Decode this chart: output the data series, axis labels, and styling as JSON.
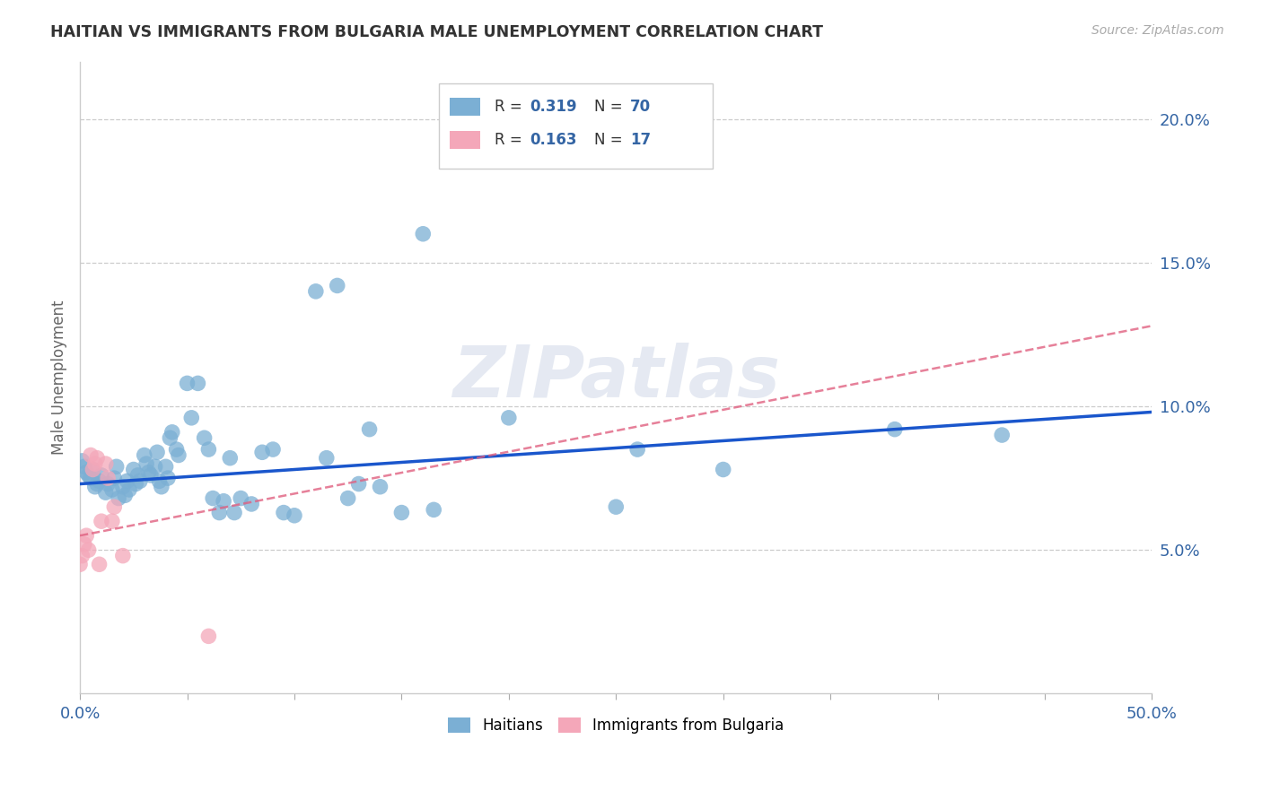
{
  "title": "HAITIAN VS IMMIGRANTS FROM BULGARIA MALE UNEMPLOYMENT CORRELATION CHART",
  "source": "Source: ZipAtlas.com",
  "ylabel": "Male Unemployment",
  "watermark": "ZIPatlas",
  "xlim": [
    0.0,
    0.5
  ],
  "ylim": [
    0.0,
    0.22
  ],
  "xticks": [
    0.0,
    0.05,
    0.1,
    0.15,
    0.2,
    0.25,
    0.3,
    0.35,
    0.4,
    0.45,
    0.5
  ],
  "yticks": [
    0.05,
    0.1,
    0.15,
    0.2
  ],
  "color_haiti": "#7bafd4",
  "color_bulgaria": "#f4a7b9",
  "trendline_haiti_color": "#1a56cc",
  "trendline_bulgaria_color": "#e06080",
  "haiti_points": [
    [
      0.001,
      0.081
    ],
    [
      0.002,
      0.079
    ],
    [
      0.003,
      0.077
    ],
    [
      0.004,
      0.076
    ],
    [
      0.005,
      0.075
    ],
    [
      0.006,
      0.078
    ],
    [
      0.007,
      0.072
    ],
    [
      0.008,
      0.073
    ],
    [
      0.009,
      0.074
    ],
    [
      0.01,
      0.076
    ],
    [
      0.012,
      0.07
    ],
    [
      0.013,
      0.073
    ],
    [
      0.015,
      0.071
    ],
    [
      0.016,
      0.075
    ],
    [
      0.017,
      0.079
    ],
    [
      0.018,
      0.068
    ],
    [
      0.02,
      0.072
    ],
    [
      0.021,
      0.069
    ],
    [
      0.022,
      0.074
    ],
    [
      0.023,
      0.071
    ],
    [
      0.025,
      0.078
    ],
    [
      0.026,
      0.073
    ],
    [
      0.027,
      0.076
    ],
    [
      0.028,
      0.074
    ],
    [
      0.03,
      0.083
    ],
    [
      0.031,
      0.08
    ],
    [
      0.032,
      0.077
    ],
    [
      0.033,
      0.076
    ],
    [
      0.035,
      0.079
    ],
    [
      0.036,
      0.084
    ],
    [
      0.037,
      0.074
    ],
    [
      0.038,
      0.072
    ],
    [
      0.04,
      0.079
    ],
    [
      0.041,
      0.075
    ],
    [
      0.042,
      0.089
    ],
    [
      0.043,
      0.091
    ],
    [
      0.045,
      0.085
    ],
    [
      0.046,
      0.083
    ],
    [
      0.05,
      0.108
    ],
    [
      0.052,
      0.096
    ],
    [
      0.055,
      0.108
    ],
    [
      0.058,
      0.089
    ],
    [
      0.06,
      0.085
    ],
    [
      0.062,
      0.068
    ],
    [
      0.065,
      0.063
    ],
    [
      0.067,
      0.067
    ],
    [
      0.07,
      0.082
    ],
    [
      0.072,
      0.063
    ],
    [
      0.075,
      0.068
    ],
    [
      0.08,
      0.066
    ],
    [
      0.085,
      0.084
    ],
    [
      0.09,
      0.085
    ],
    [
      0.095,
      0.063
    ],
    [
      0.1,
      0.062
    ],
    [
      0.11,
      0.14
    ],
    [
      0.115,
      0.082
    ],
    [
      0.12,
      0.142
    ],
    [
      0.125,
      0.068
    ],
    [
      0.13,
      0.073
    ],
    [
      0.135,
      0.092
    ],
    [
      0.14,
      0.072
    ],
    [
      0.15,
      0.063
    ],
    [
      0.16,
      0.16
    ],
    [
      0.165,
      0.064
    ],
    [
      0.2,
      0.096
    ],
    [
      0.25,
      0.065
    ],
    [
      0.26,
      0.085
    ],
    [
      0.3,
      0.078
    ],
    [
      0.38,
      0.092
    ],
    [
      0.43,
      0.09
    ]
  ],
  "bulgaria_points": [
    [
      0.0,
      0.045
    ],
    [
      0.001,
      0.048
    ],
    [
      0.002,
      0.052
    ],
    [
      0.003,
      0.055
    ],
    [
      0.004,
      0.05
    ],
    [
      0.005,
      0.083
    ],
    [
      0.006,
      0.078
    ],
    [
      0.007,
      0.08
    ],
    [
      0.008,
      0.082
    ],
    [
      0.009,
      0.045
    ],
    [
      0.01,
      0.06
    ],
    [
      0.012,
      0.08
    ],
    [
      0.013,
      0.075
    ],
    [
      0.015,
      0.06
    ],
    [
      0.016,
      0.065
    ],
    [
      0.06,
      0.02
    ],
    [
      0.02,
      0.048
    ]
  ],
  "trendline_haiti": [
    [
      0.0,
      0.073
    ],
    [
      0.5,
      0.098
    ]
  ],
  "trendline_bulgaria": [
    [
      0.0,
      0.055
    ],
    [
      0.5,
      0.128
    ]
  ]
}
